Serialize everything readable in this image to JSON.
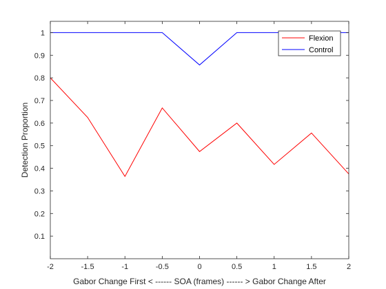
{
  "chart_data": {
    "type": "line",
    "title": "",
    "xlabel": "Gabor Change First < ------ SOA (frames) ------ > Gabor Change After",
    "ylabel": "Detection Proportion",
    "xlim": [
      -2,
      2
    ],
    "ylim": [
      0,
      1.05
    ],
    "xticks": [
      -2,
      -1.5,
      -1,
      -0.5,
      0,
      0.5,
      1,
      1.5,
      2
    ],
    "xtick_labels": [
      "-2",
      "-1.5",
      "-1",
      "-0.5",
      "0",
      "0.5",
      "1",
      "1.5",
      "2"
    ],
    "yticks": [
      0.1,
      0.2,
      0.3,
      0.4,
      0.5,
      0.6,
      0.7,
      0.8,
      0.9,
      1
    ],
    "ytick_labels": [
      "0.1",
      "0.2",
      "0.3",
      "0.4",
      "0.5",
      "0.6",
      "0.7",
      "0.8",
      "0.9",
      "1"
    ],
    "grid": false,
    "legend_position": "top-right",
    "x": [
      -2,
      -1.5,
      -1,
      -0.5,
      0,
      0.5,
      1,
      1.5,
      2
    ],
    "series": [
      {
        "name": "Flexion",
        "color": "#ff0000",
        "values": [
          0.8,
          0.625,
          0.364,
          0.667,
          0.474,
          0.6,
          0.417,
          0.556,
          0.375
        ]
      },
      {
        "name": "Control",
        "color": "#0000ff",
        "values": [
          1,
          1,
          1,
          1,
          0.857,
          1,
          1,
          1,
          1
        ]
      }
    ]
  }
}
